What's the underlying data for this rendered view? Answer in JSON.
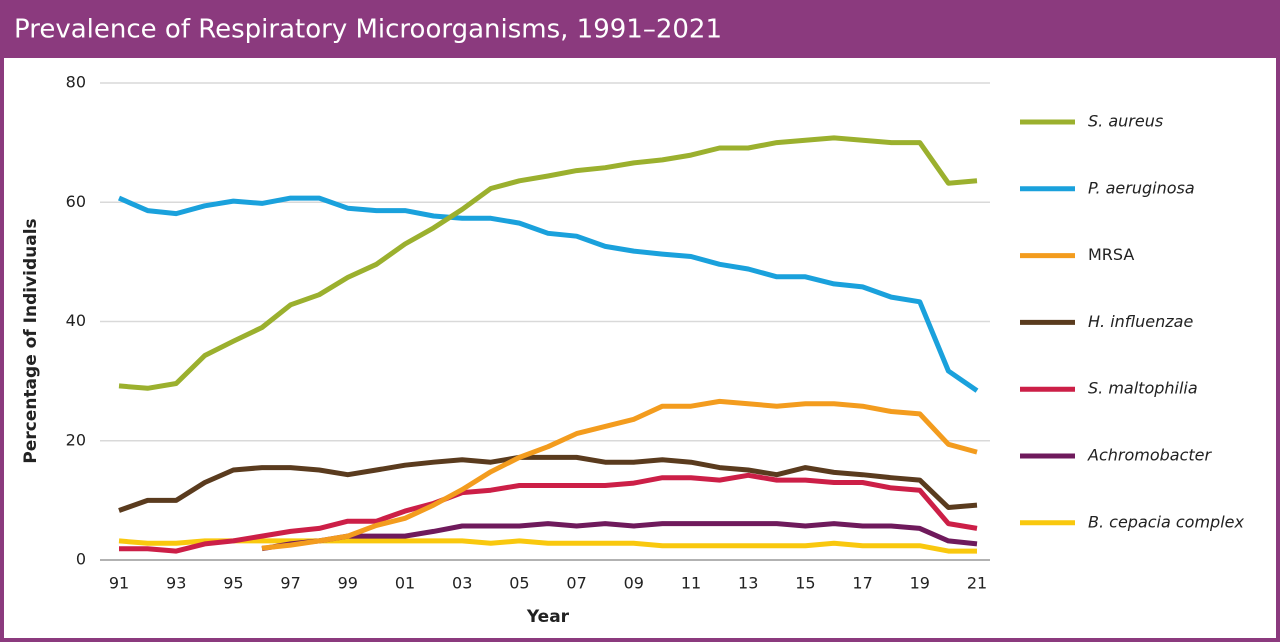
{
  "chart_data": {
    "type": "line",
    "title": "Prevalence of Respiratory Microorganisms, 1991–2021",
    "x_label": "Year",
    "y_label": "Percentage of Individuals",
    "categories": [
      "91",
      null,
      "93",
      null,
      "95",
      null,
      "97",
      null,
      "99",
      null,
      "01",
      null,
      "03",
      null,
      "05",
      null,
      "07",
      null,
      "09",
      null,
      "11",
      null,
      "13",
      null,
      "15",
      null,
      "17",
      null,
      "19",
      null,
      "21"
    ],
    "ylim": [
      0,
      80
    ],
    "yticks": [
      0,
      20,
      40,
      60,
      80
    ],
    "grid": true,
    "legend": "right",
    "series": [
      {
        "name": "S. aureus",
        "color": "#9bb02e",
        "italic": true,
        "values": [
          29.2,
          28.8,
          29.6,
          34.3,
          36.7,
          39,
          42.8,
          44.5,
          47.4,
          49.6,
          53,
          55.7,
          58.8,
          62.3,
          63.6,
          64.4,
          65.3,
          65.8,
          66.6,
          67.1,
          67.9,
          69.1,
          69.1,
          70,
          70.4,
          70.8,
          70.4,
          70,
          70,
          63.2,
          63.6
        ]
      },
      {
        "name": "P. aeruginosa",
        "color": "#1aa1dc",
        "italic": true,
        "values": [
          60.7,
          58.6,
          58.1,
          59.4,
          60.2,
          59.8,
          60.7,
          60.7,
          59,
          58.6,
          58.6,
          57.7,
          57.3,
          57.3,
          56.5,
          54.8,
          54.3,
          52.6,
          51.8,
          51.3,
          50.9,
          49.6,
          48.8,
          47.5,
          47.5,
          46.3,
          45.8,
          44.1,
          43.3,
          31.7,
          28.4
        ]
      },
      {
        "name": "MRSA",
        "color": "#f39c1e",
        "italic": false,
        "values": [
          null,
          null,
          null,
          null,
          null,
          2,
          2.5,
          3.2,
          4,
          5.8,
          7,
          9.2,
          11.8,
          14.8,
          17.2,
          19,
          21.2,
          22.4,
          23.6,
          25.8,
          25.8,
          26.6,
          26.2,
          25.8,
          26.2,
          26.2,
          25.8,
          24.9,
          24.5,
          19.4,
          18.1
        ]
      },
      {
        "name": "H. influenzae",
        "color": "#5a3b1e",
        "italic": true,
        "values": [
          8.3,
          10,
          10,
          13,
          15.1,
          15.5,
          15.5,
          15.1,
          14.3,
          15.1,
          15.9,
          16.4,
          16.8,
          16.4,
          17.2,
          17.2,
          17.2,
          16.4,
          16.4,
          16.8,
          16.4,
          15.5,
          15.1,
          14.3,
          15.5,
          14.7,
          14.3,
          13.8,
          13.4,
          8.8,
          9.2
        ]
      },
      {
        "name": "S. maltophilia",
        "color": "#cc1f47",
        "italic": true,
        "values": [
          1.9,
          1.9,
          1.5,
          2.7,
          3.2,
          4,
          4.8,
          5.3,
          6.5,
          6.5,
          8.2,
          9.5,
          11.3,
          11.7,
          12.5,
          12.5,
          12.5,
          12.5,
          12.9,
          13.8,
          13.8,
          13.4,
          14.2,
          13.4,
          13.4,
          13,
          13,
          12.1,
          11.7,
          6.1,
          5.3
        ]
      },
      {
        "name": "Achromobacter",
        "color": "#6f1a5c",
        "italic": true,
        "values": [
          null,
          null,
          null,
          null,
          null,
          1.9,
          2.7,
          3.2,
          4,
          4,
          4,
          4.8,
          5.7,
          5.7,
          5.7,
          6.1,
          5.7,
          6.1,
          5.7,
          6.1,
          6.1,
          6.1,
          6.1,
          6.1,
          5.7,
          6.1,
          5.7,
          5.7,
          5.3,
          3.2,
          2.7
        ]
      },
      {
        "name": "B. cepacia complex",
        "color": "#f9c80e",
        "italic": true,
        "values": [
          3.2,
          2.8,
          2.8,
          3.2,
          3.2,
          3.2,
          3.2,
          3.2,
          3.2,
          3.2,
          3.2,
          3.2,
          3.2,
          2.8,
          3.2,
          2.8,
          2.8,
          2.8,
          2.8,
          2.4,
          2.4,
          2.4,
          2.4,
          2.4,
          2.4,
          2.8,
          2.4,
          2.4,
          2.4,
          1.5,
          1.5
        ]
      }
    ]
  }
}
